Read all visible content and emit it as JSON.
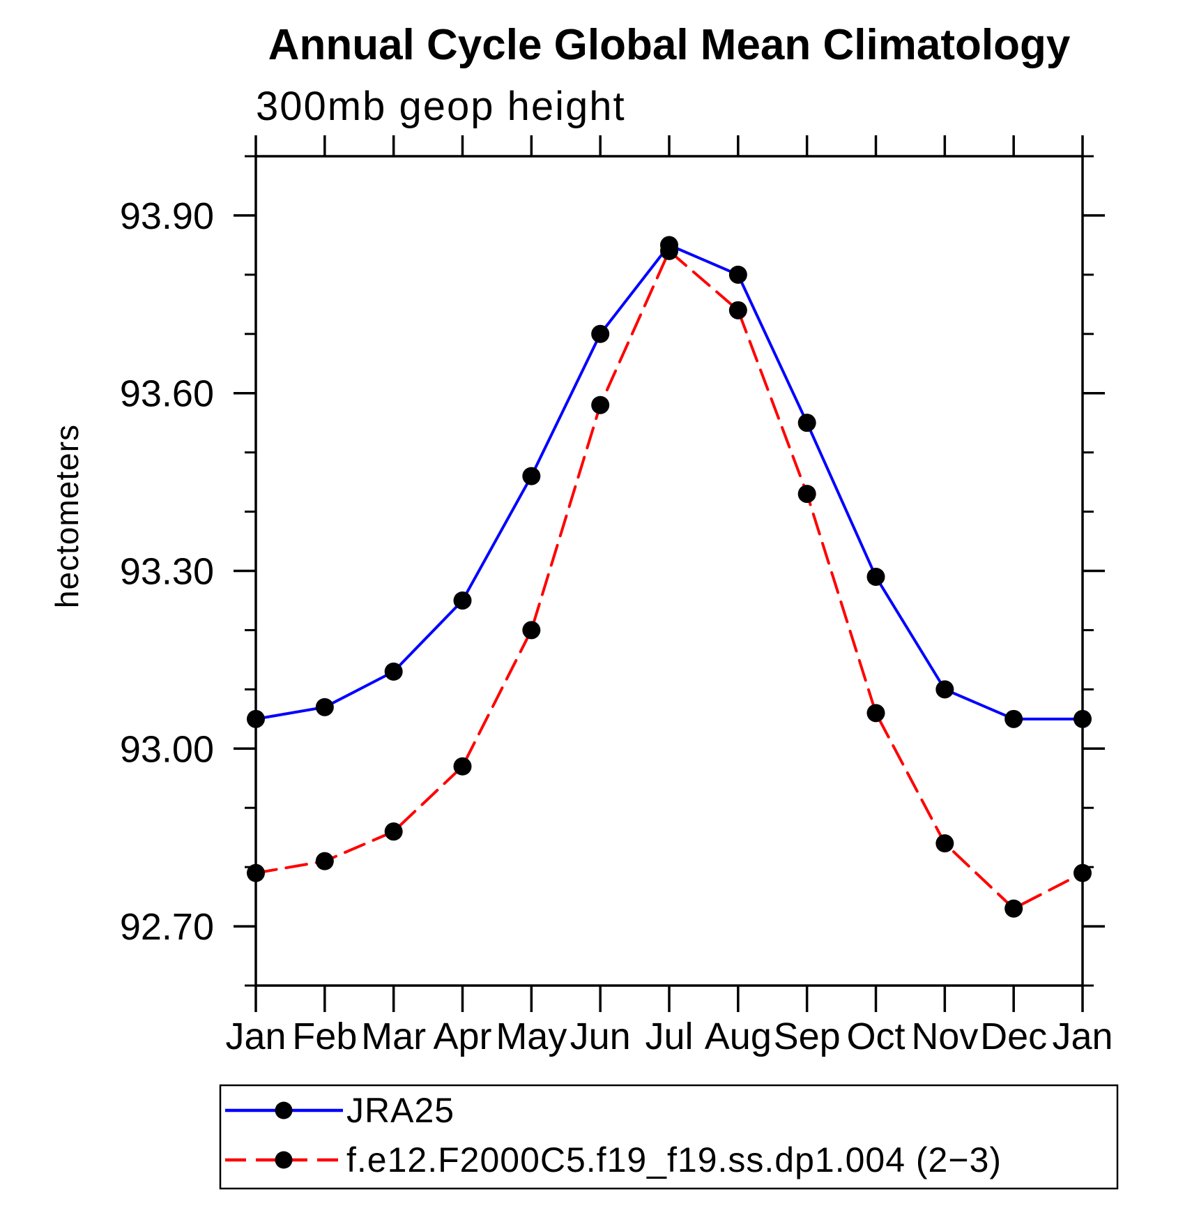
{
  "title": "Annual Cycle Global Mean Climatology",
  "subtitle": "300mb geop height",
  "y_axis": {
    "label": "hectometers",
    "tick_labels": [
      "93.90",
      "93.60",
      "93.30",
      "93.00",
      "92.70"
    ],
    "tick_values": [
      93.9,
      93.6,
      93.3,
      93.0,
      92.7
    ],
    "minor_step": 0.1,
    "range": [
      92.6,
      94.0
    ]
  },
  "x_axis": {
    "tick_labels": [
      "Jan",
      "Feb",
      "Mar",
      "Apr",
      "May",
      "Jun",
      "Jul",
      "Aug",
      "Sep",
      "Oct",
      "Nov",
      "Dec",
      "Jan"
    ]
  },
  "legend": {
    "items": [
      {
        "label": "JRA25",
        "color": "#0000ff",
        "style": "solid"
      },
      {
        "label": "f.e12.F2000C5.f19_f19.ss.dp1.004 (2−3)",
        "color": "#ff0000",
        "style": "dashed"
      }
    ],
    "marker_color": "#000000"
  },
  "colors": {
    "series1": "#0000ff",
    "series2": "#ff0000",
    "marker": "#000000",
    "axis": "#000000"
  },
  "chart_data": {
    "type": "line",
    "categories": [
      "Jan",
      "Feb",
      "Mar",
      "Apr",
      "May",
      "Jun",
      "Jul",
      "Aug",
      "Sep",
      "Oct",
      "Nov",
      "Dec",
      "Jan"
    ],
    "series": [
      {
        "name": "JRA25",
        "color": "#0000ff",
        "line_style": "solid",
        "marker": "filled-circle",
        "values": [
          93.05,
          93.07,
          93.13,
          93.25,
          93.46,
          93.7,
          93.85,
          93.8,
          93.55,
          93.29,
          93.1,
          93.05,
          93.05
        ]
      },
      {
        "name": "f.e12.F2000C5.f19_f19.ss.dp1.004 (2−3)",
        "color": "#ff0000",
        "line_style": "dashed",
        "marker": "filled-circle",
        "values": [
          92.79,
          92.81,
          92.86,
          92.97,
          93.2,
          93.58,
          93.84,
          93.74,
          93.43,
          93.06,
          92.84,
          92.73,
          92.79
        ]
      }
    ],
    "title": "Annual Cycle Global Mean Climatology",
    "subtitle": "300mb geop height",
    "xlabel": "",
    "ylabel": "hectometers",
    "ylim": [
      92.6,
      94.0
    ],
    "yticks_major": [
      92.7,
      93.0,
      93.3,
      93.6,
      93.9
    ],
    "ytick_minor_step": 0.1,
    "grid": false,
    "legend_position": "bottom"
  }
}
